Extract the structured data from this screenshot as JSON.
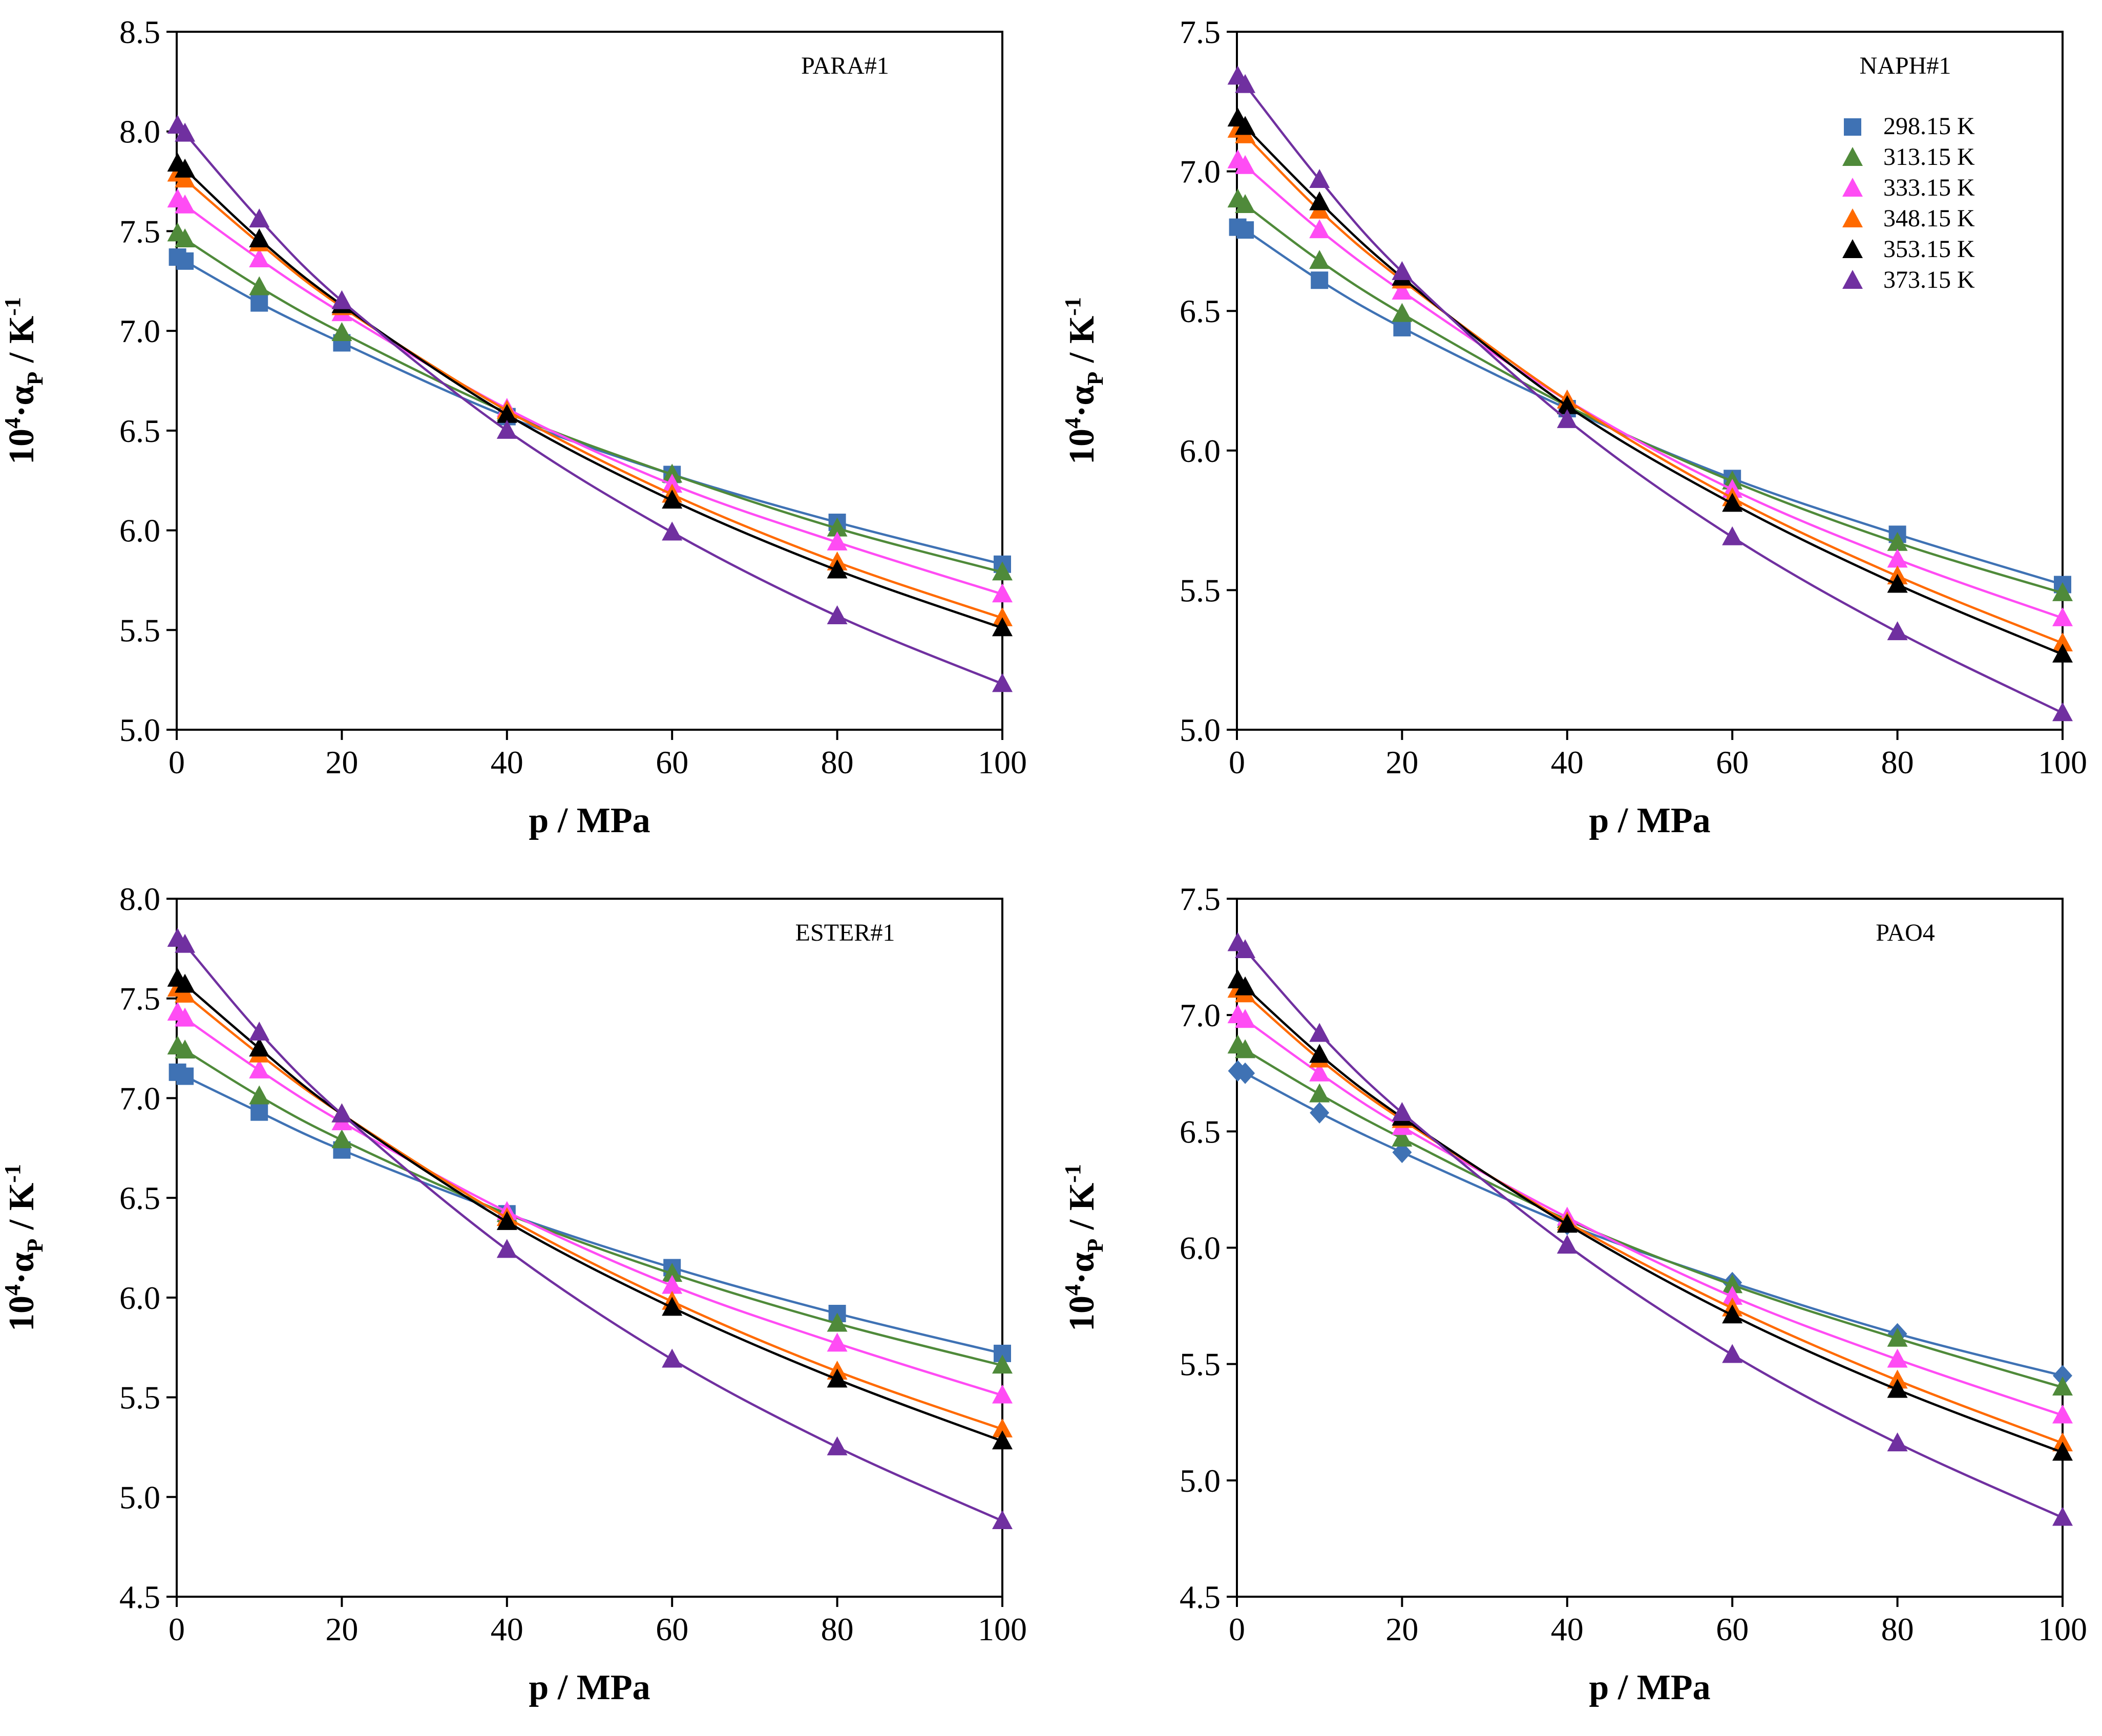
{
  "chart_data": [
    {
      "type": "line",
      "panel_label": "PARA#1",
      "xlabel": "p / MPa",
      "ylabel": {
        "base": "10",
        "sup": "4",
        "dot": "·α",
        "sub": "P",
        "unit": " / K",
        "unit_sup": "-1"
      },
      "xlim": [
        0,
        100
      ],
      "ylim": [
        5.0,
        8.5
      ],
      "xticks": [
        0,
        20,
        40,
        60,
        80,
        100
      ],
      "xtick_labels": [
        "0",
        "20",
        "40",
        "60",
        "80",
        "100"
      ],
      "yticks": [
        5.0,
        5.5,
        6.0,
        6.5,
        7.0,
        7.5,
        8.0,
        8.5
      ],
      "ytick_labels": [
        "5.0",
        "5.5",
        "6.0",
        "6.5",
        "7.0",
        "7.5",
        "8.0",
        "8.5"
      ],
      "x": [
        0.1,
        1,
        10,
        20,
        40,
        60,
        80,
        100
      ],
      "show_legend": false,
      "series": [
        {
          "name": "298.15 K",
          "color": "#3f72b4",
          "marker": "square",
          "values": [
            7.37,
            7.35,
            7.14,
            6.94,
            6.57,
            6.28,
            6.04,
            5.83
          ]
        },
        {
          "name": "313.15 K",
          "color": "#4f8a3a",
          "marker": "triangle",
          "values": [
            7.49,
            7.46,
            7.22,
            6.99,
            6.59,
            6.28,
            6.01,
            5.79
          ]
        },
        {
          "name": "333.15 K",
          "color": "#ff4cf4",
          "marker": "triangle",
          "values": [
            7.66,
            7.63,
            7.36,
            7.09,
            6.61,
            6.23,
            5.94,
            5.68
          ]
        },
        {
          "name": "348.15 K",
          "color": "#ff6a00",
          "marker": "triangle",
          "values": [
            7.79,
            7.76,
            7.44,
            7.12,
            6.6,
            6.18,
            5.84,
            5.56
          ]
        },
        {
          "name": "353.15 K",
          "color": "#000000",
          "marker": "triangle",
          "values": [
            7.84,
            7.81,
            7.46,
            7.13,
            6.58,
            6.15,
            5.8,
            5.51
          ]
        },
        {
          "name": "373.15 K",
          "color": "#7030a0",
          "marker": "triangle",
          "values": [
            8.03,
            7.99,
            7.56,
            7.15,
            6.5,
            5.99,
            5.57,
            5.23
          ]
        }
      ]
    },
    {
      "type": "line",
      "panel_label": "NAPH#1",
      "xlabel": "p / MPa",
      "ylabel": {
        "base": "10",
        "sup": "4",
        "dot": "·α",
        "sub": "P",
        "unit": " / K",
        "unit_sup": "-1"
      },
      "xlim": [
        0,
        100
      ],
      "ylim": [
        5.0,
        7.5
      ],
      "xticks": [
        0,
        20,
        40,
        60,
        80,
        100
      ],
      "xtick_labels": [
        "0",
        "20",
        "40",
        "60",
        "80",
        "100"
      ],
      "yticks": [
        5.0,
        5.5,
        6.0,
        6.5,
        7.0,
        7.5
      ],
      "ytick_labels": [
        "5.0",
        "5.5",
        "6.0",
        "6.5",
        "7.0",
        "7.5"
      ],
      "x": [
        0.1,
        1,
        10,
        20,
        40,
        60,
        80,
        100
      ],
      "show_legend": true,
      "legend_position": "upper-right",
      "series": [
        {
          "name": "298.15 K",
          "color": "#3f72b4",
          "marker": "square",
          "values": [
            6.8,
            6.79,
            6.61,
            6.44,
            6.15,
            5.9,
            5.7,
            5.52
          ]
        },
        {
          "name": "313.15 K",
          "color": "#4f8a3a",
          "marker": "triangle",
          "values": [
            6.9,
            6.88,
            6.68,
            6.49,
            6.16,
            5.89,
            5.67,
            5.49
          ]
        },
        {
          "name": "333.15 K",
          "color": "#ff4cf4",
          "marker": "triangle",
          "values": [
            7.04,
            7.02,
            6.79,
            6.57,
            6.18,
            5.86,
            5.61,
            5.4
          ]
        },
        {
          "name": "348.15 K",
          "color": "#ff6a00",
          "marker": "triangle",
          "values": [
            7.15,
            7.13,
            6.86,
            6.61,
            6.18,
            5.83,
            5.55,
            5.31
          ]
        },
        {
          "name": "353.15 K",
          "color": "#000000",
          "marker": "triangle",
          "values": [
            7.19,
            7.16,
            6.89,
            6.62,
            6.16,
            5.81,
            5.52,
            5.27
          ]
        },
        {
          "name": "373.15 K",
          "color": "#7030a0",
          "marker": "triangle",
          "values": [
            7.34,
            7.31,
            6.97,
            6.64,
            6.11,
            5.69,
            5.35,
            5.06
          ]
        }
      ]
    },
    {
      "type": "line",
      "panel_label": "ESTER#1",
      "xlabel": "p / MPa",
      "ylabel": {
        "base": "10",
        "sup": "4",
        "dot": "·α",
        "sub": "P",
        "unit": " / K",
        "unit_sup": "-1"
      },
      "xlim": [
        0,
        100
      ],
      "ylim": [
        4.5,
        8.0
      ],
      "xticks": [
        0,
        20,
        40,
        60,
        80,
        100
      ],
      "xtick_labels": [
        "0",
        "20",
        "40",
        "60",
        "80",
        "100"
      ],
      "yticks": [
        4.5,
        5.0,
        5.5,
        6.0,
        6.5,
        7.0,
        7.5,
        8.0
      ],
      "ytick_labels": [
        "4.5",
        "5.0",
        "5.5",
        "6.0",
        "6.5",
        "7.0",
        "7.5",
        "8.0"
      ],
      "x": [
        0.1,
        1,
        10,
        20,
        40,
        60,
        80,
        100
      ],
      "show_legend": false,
      "series": [
        {
          "name": "298.15 K",
          "color": "#3f72b4",
          "marker": "square",
          "values": [
            7.13,
            7.11,
            6.93,
            6.74,
            6.42,
            6.15,
            5.92,
            5.72
          ]
        },
        {
          "name": "313.15 K",
          "color": "#4f8a3a",
          "marker": "triangle",
          "values": [
            7.26,
            7.24,
            7.01,
            6.79,
            6.42,
            6.12,
            5.87,
            5.66
          ]
        },
        {
          "name": "333.15 K",
          "color": "#ff4cf4",
          "marker": "triangle",
          "values": [
            7.43,
            7.4,
            7.14,
            6.88,
            6.43,
            6.06,
            5.77,
            5.51
          ]
        },
        {
          "name": "348.15 K",
          "color": "#ff6a00",
          "marker": "triangle",
          "values": [
            7.55,
            7.52,
            7.22,
            6.92,
            6.4,
            5.98,
            5.63,
            5.34
          ]
        },
        {
          "name": "353.15 K",
          "color": "#000000",
          "marker": "triangle",
          "values": [
            7.6,
            7.57,
            7.25,
            6.92,
            6.38,
            5.95,
            5.59,
            5.28
          ]
        },
        {
          "name": "373.15 K",
          "color": "#7030a0",
          "marker": "triangle",
          "values": [
            7.8,
            7.77,
            7.33,
            6.92,
            6.24,
            5.69,
            5.25,
            4.88
          ]
        }
      ]
    },
    {
      "type": "line",
      "panel_label": "PAO4",
      "xlabel": "p / MPa",
      "ylabel": {
        "base": "10",
        "sup": "4",
        "dot": "·α",
        "sub": "P",
        "unit": " / K",
        "unit_sup": "-1"
      },
      "xlim": [
        0,
        100
      ],
      "ylim": [
        4.5,
        7.5
      ],
      "xticks": [
        0,
        20,
        40,
        60,
        80,
        100
      ],
      "xtick_labels": [
        "0",
        "20",
        "40",
        "60",
        "80",
        "100"
      ],
      "yticks": [
        4.5,
        5.0,
        5.5,
        6.0,
        6.5,
        7.0,
        7.5
      ],
      "ytick_labels": [
        "4.5",
        "5.0",
        "5.5",
        "6.0",
        "6.5",
        "7.0",
        "7.5"
      ],
      "x": [
        0.1,
        1,
        10,
        20,
        40,
        60,
        80,
        100
      ],
      "show_legend": false,
      "series": [
        {
          "name": "298.15 K",
          "color": "#3f72b4",
          "marker": "diamond",
          "values": [
            6.76,
            6.75,
            6.58,
            6.41,
            6.1,
            5.85,
            5.63,
            5.45
          ]
        },
        {
          "name": "313.15 K",
          "color": "#4f8a3a",
          "marker": "triangle",
          "values": [
            6.87,
            6.85,
            6.66,
            6.47,
            6.12,
            5.84,
            5.61,
            5.4
          ]
        },
        {
          "name": "333.15 K",
          "color": "#ff4cf4",
          "marker": "triangle",
          "values": [
            7.0,
            6.98,
            6.75,
            6.52,
            6.13,
            5.79,
            5.52,
            5.28
          ]
        },
        {
          "name": "348.15 K",
          "color": "#ff6a00",
          "marker": "triangle",
          "values": [
            7.11,
            7.09,
            6.81,
            6.55,
            6.11,
            5.74,
            5.43,
            5.16
          ]
        },
        {
          "name": "353.15 K",
          "color": "#000000",
          "marker": "triangle",
          "values": [
            7.15,
            7.12,
            6.83,
            6.56,
            6.1,
            5.71,
            5.39,
            5.12
          ]
        },
        {
          "name": "373.15 K",
          "color": "#7030a0",
          "marker": "triangle",
          "values": [
            7.31,
            7.28,
            6.92,
            6.58,
            6.01,
            5.54,
            5.16,
            4.84
          ]
        }
      ]
    }
  ]
}
